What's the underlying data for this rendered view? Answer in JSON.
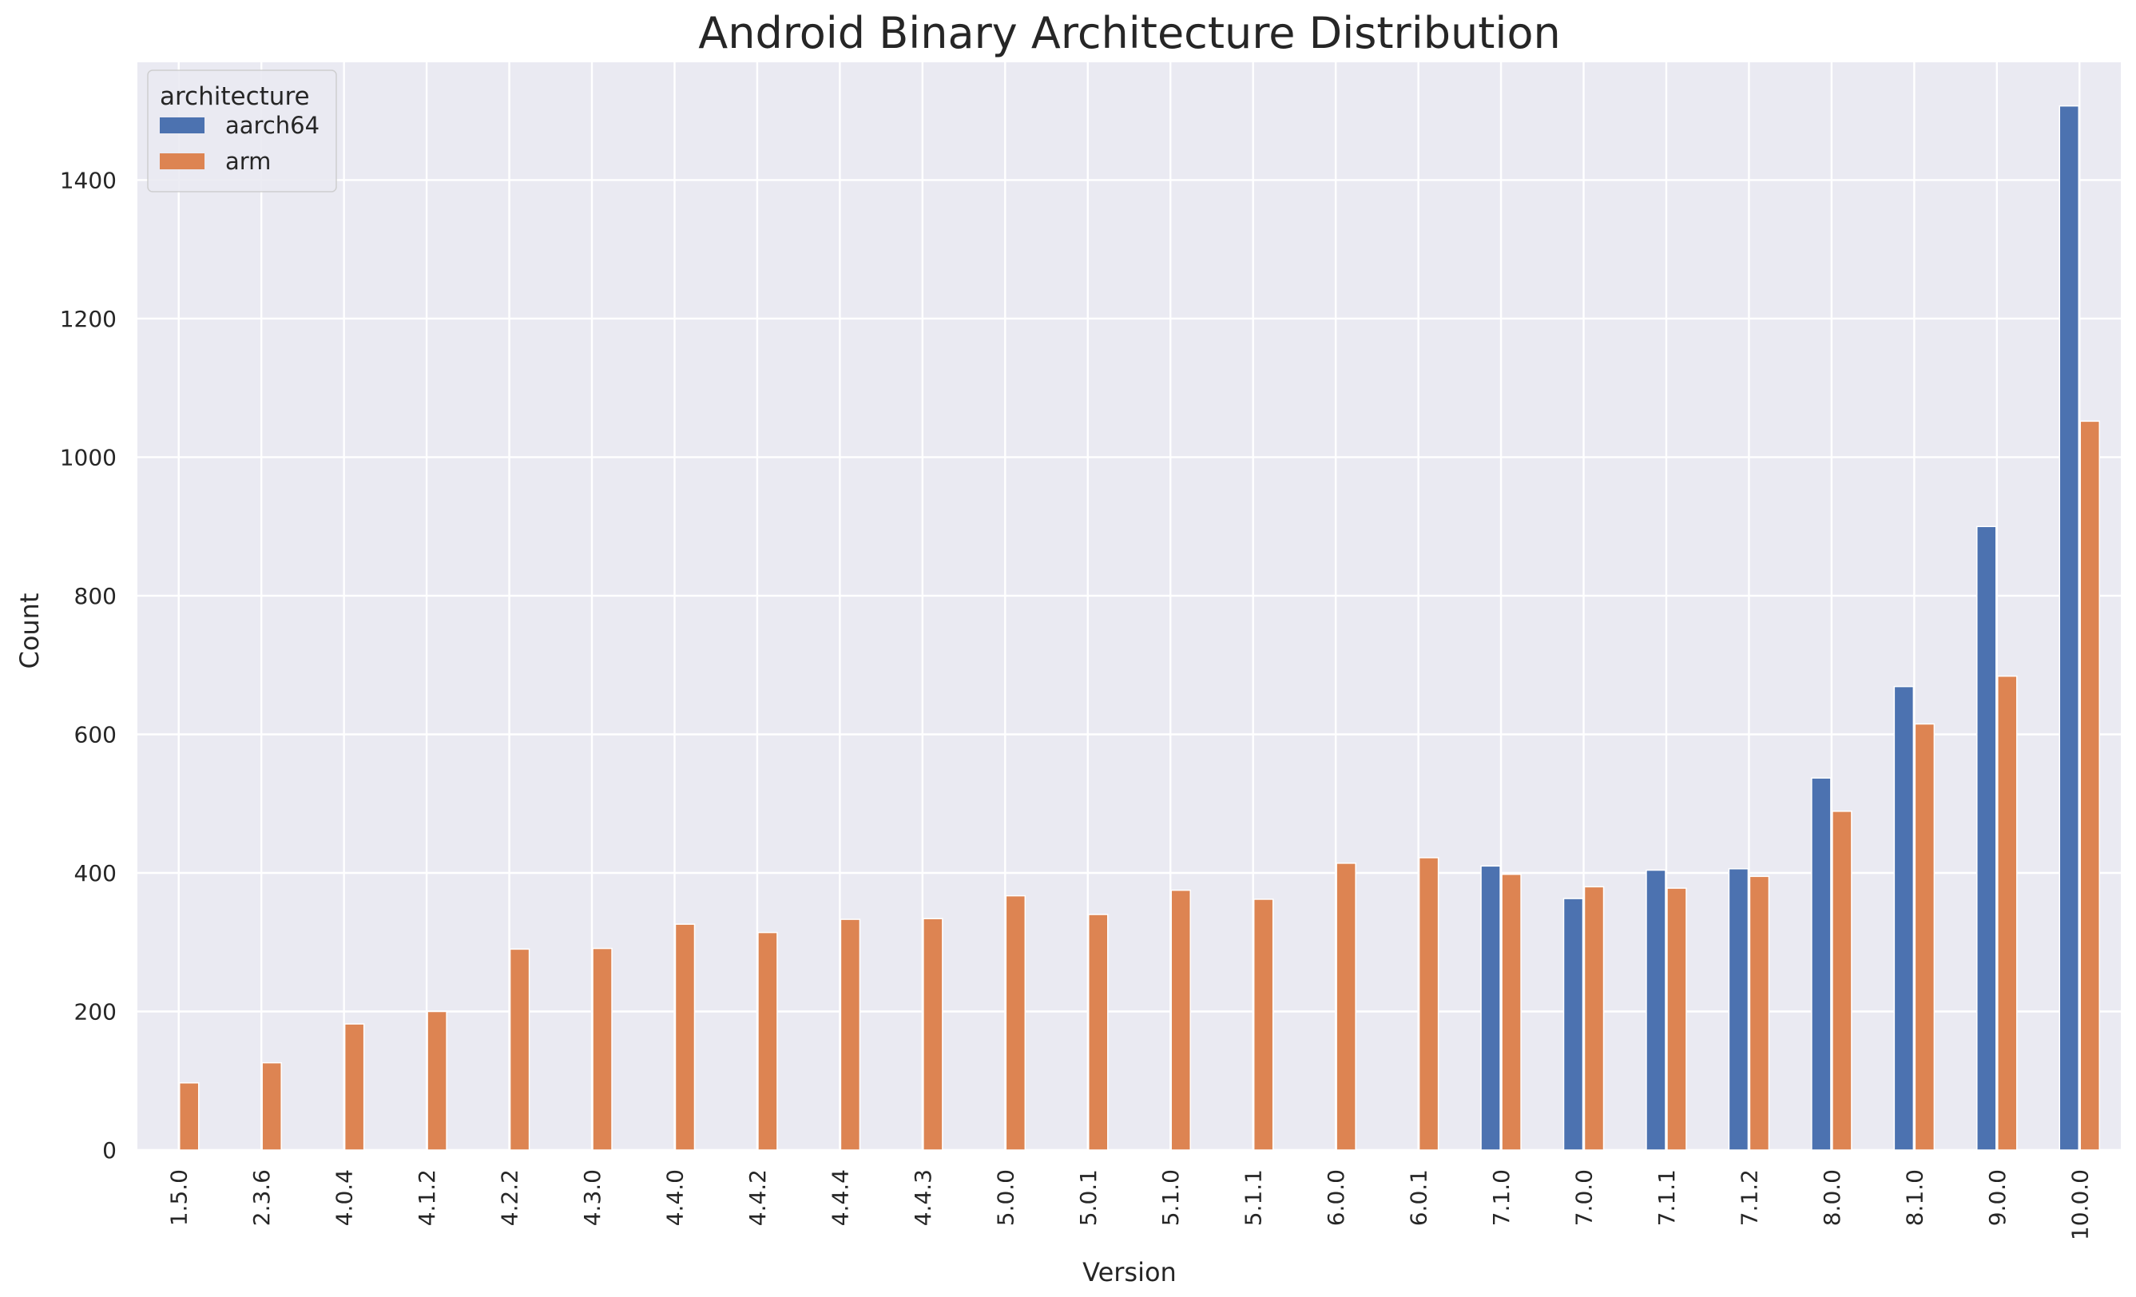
{
  "chart_data": {
    "type": "bar",
    "title": "Android Binary Architecture Distribution",
    "xlabel": "Version",
    "ylabel": "Count",
    "ylim": [
      0,
      1570
    ],
    "yticks": [
      0,
      200,
      400,
      600,
      800,
      1000,
      1200,
      1400
    ],
    "grid": true,
    "legend_placement": "top-left",
    "legend_title": "architecture",
    "categories": [
      "1.5.0",
      "2.3.6",
      "4.0.4",
      "4.1.2",
      "4.2.2",
      "4.3.0",
      "4.4.0",
      "4.4.2",
      "4.4.4",
      "4.4.3",
      "5.0.0",
      "5.0.1",
      "5.1.0",
      "5.1.1",
      "6.0.0",
      "6.0.1",
      "7.1.0",
      "7.0.0",
      "7.1.1",
      "7.1.2",
      "8.0.0",
      "8.1.0",
      "9.0.0",
      "10.0.0"
    ],
    "series": [
      {
        "name": "aarch64",
        "color": "#4c72b0",
        "values": [
          0,
          0,
          0,
          0,
          0,
          0,
          0,
          0,
          0,
          0,
          0,
          0,
          0,
          0,
          0,
          0,
          410,
          363,
          404,
          406,
          537,
          669,
          900,
          1507
        ]
      },
      {
        "name": "arm",
        "color": "#dd8452",
        "values": [
          97,
          126,
          182,
          200,
          290,
          291,
          326,
          314,
          333,
          334,
          367,
          340,
          375,
          362,
          414,
          422,
          398,
          380,
          378,
          395,
          489,
          615,
          684,
          1052
        ]
      }
    ]
  },
  "colors": {
    "plot_background": "#eaeaf2",
    "grid": "#ffffff",
    "text": "#262626"
  }
}
